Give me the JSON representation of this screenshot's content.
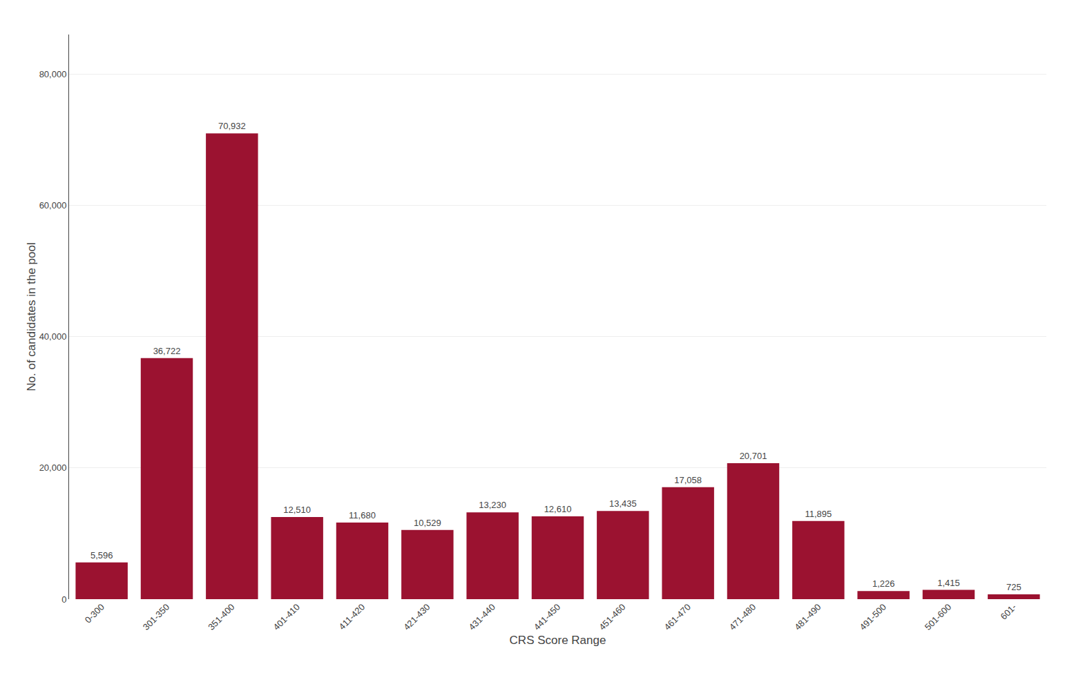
{
  "chart_data": {
    "type": "bar",
    "xlabel": "CRS Score Range",
    "ylabel": "No. of candidates in the pool",
    "categories": [
      "0-300",
      "301-350",
      "351-400",
      "401-410",
      "411-420",
      "421-430",
      "431-440",
      "441-450",
      "451-460",
      "461-470",
      "471-480",
      "481-490",
      "491-500",
      "501-600",
      "601-"
    ],
    "values": [
      5596,
      36722,
      70932,
      12510,
      11680,
      10529,
      13230,
      12610,
      13435,
      17058,
      20701,
      11895,
      1226,
      1415,
      725
    ],
    "value_labels": [
      "5,596",
      "36,722",
      "70,932",
      "12,510",
      "11,680",
      "10,529",
      "13,230",
      "12,610",
      "13,435",
      "17,058",
      "20,701",
      "11,895",
      "1,226",
      "1,415",
      "725"
    ],
    "color": "#9B1230",
    "ylim": [
      0,
      86000
    ],
    "yticks": [
      0,
      {
        "value": 20000,
        "label": "20,000"
      },
      {
        "value": 40000,
        "label": "40,000"
      },
      {
        "value": 60000,
        "label": "60,000"
      },
      {
        "value": 80000,
        "label": "80,000"
      }
    ],
    "grid": true,
    "data_labels": true
  }
}
